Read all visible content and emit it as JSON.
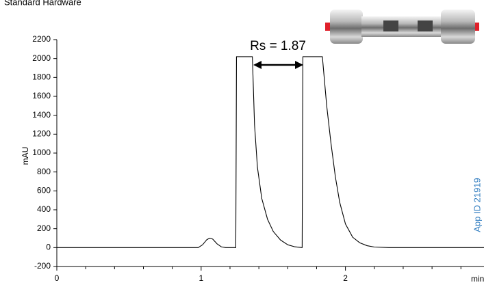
{
  "chart_data": {
    "type": "line",
    "title": "Standard Hardware",
    "xlabel": "min",
    "ylabel": "mAU",
    "annotations": [
      "Rs = 1.87",
      "App ID 21919"
    ],
    "xlim": [
      0,
      2.96
    ],
    "xticks": [
      0,
      1,
      2
    ],
    "xminor_ticks": [
      0.2,
      0.4,
      0.6,
      0.8,
      1.2,
      1.4,
      1.6,
      1.8,
      2.2,
      2.4,
      2.6,
      2.8
    ],
    "ylim": [
      -200,
      2200
    ],
    "yticks": [
      -200,
      0,
      200,
      400,
      600,
      800,
      1000,
      1200,
      1400,
      1600,
      1800,
      2000,
      2200
    ],
    "series": [
      {
        "name": "trace",
        "color": "#000000",
        "x": [
          0,
          0.98,
          1.01,
          1.04,
          1.06,
          1.08,
          1.11,
          1.14,
          1.17,
          1.24,
          1.245,
          1.255,
          1.355,
          1.37,
          1.39,
          1.42,
          1.46,
          1.5,
          1.55,
          1.6,
          1.65,
          1.7,
          1.705,
          1.725,
          1.84,
          1.87,
          1.9,
          1.93,
          1.96,
          2.0,
          2.05,
          2.1,
          2.15,
          2.2,
          2.3,
          2.96
        ],
        "values": [
          0,
          0,
          30,
          85,
          100,
          90,
          40,
          8,
          0,
          0,
          2020,
          2020,
          2020,
          1300,
          850,
          520,
          300,
          170,
          80,
          30,
          8,
          0,
          2020,
          2020,
          2020,
          1500,
          1100,
          750,
          480,
          250,
          110,
          50,
          20,
          6,
          0,
          0
        ]
      }
    ]
  }
}
